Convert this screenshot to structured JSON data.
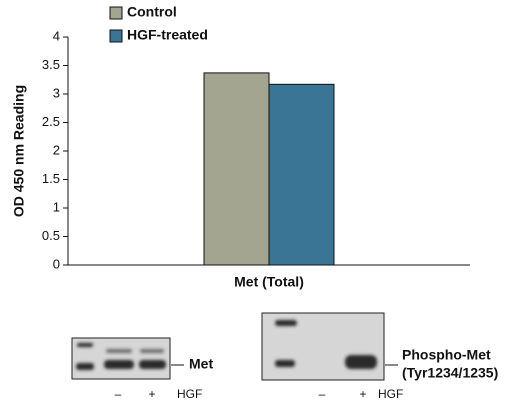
{
  "chart_data": {
    "type": "bar",
    "y_label": "OD 450 nm Reading",
    "categories": [
      "Met (Total)"
    ],
    "series": [
      {
        "name": "Control",
        "color": "#a4a590",
        "values": [
          3.37
        ]
      },
      {
        "name": "HGF-treated",
        "color": "#3a7596",
        "values": [
          3.17
        ]
      }
    ],
    "ylim": [
      0,
      4
    ],
    "yticks": [
      0,
      0.5,
      1,
      1.5,
      2,
      2.5,
      3,
      3.5,
      4
    ],
    "legend": "top-left"
  },
  "blots": [
    {
      "label": [
        "Met"
      ],
      "lanes": [
        "–",
        "+"
      ],
      "treatment": "HGF"
    },
    {
      "label": [
        "Phospho-Met",
        "(Tyr1234/1235)"
      ],
      "lanes": [
        "–",
        "+"
      ],
      "treatment": "HGF"
    }
  ]
}
